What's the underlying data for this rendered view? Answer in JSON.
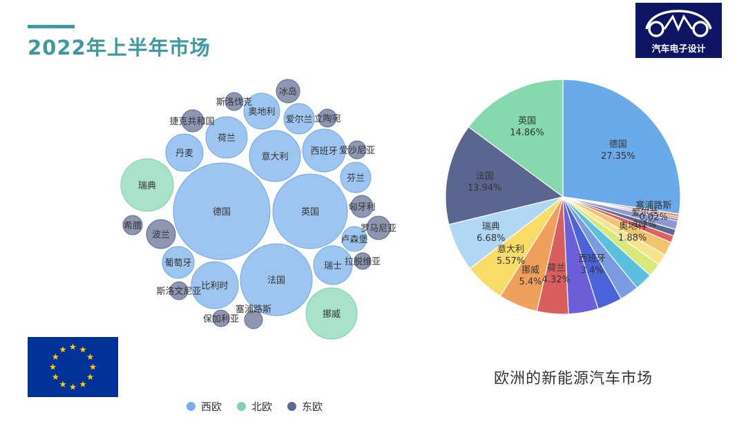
{
  "page_title": "2022年上半年市场",
  "logo": {
    "text": "汽车电子设计",
    "icon": "car-outline-icon"
  },
  "colors": {
    "accent": "#3a9aa0",
    "logo_bg": "#0d1563",
    "flag_blue": "#003399",
    "flag_star": "#ffcc00",
    "west": "#9ec5f0",
    "north": "#a8e2c8",
    "east": "#8e96b2"
  },
  "legend": [
    {
      "label": "西欧",
      "color": "#78aee8"
    },
    {
      "label": "北欧",
      "color": "#7fd3ae"
    },
    {
      "label": "东欧",
      "color": "#5c6a92"
    }
  ],
  "pie_caption": "欧洲的新能源汽车市场",
  "chart_data": [
    {
      "type": "bubble",
      "group_key": [
        "西欧",
        "北欧",
        "东欧"
      ],
      "bubbles": [
        {
          "label": "德国",
          "group": "西欧",
          "rank": 1
        },
        {
          "label": "英国",
          "group": "西欧",
          "rank": 2
        },
        {
          "label": "法国",
          "group": "西欧",
          "rank": 3
        },
        {
          "label": "比利时",
          "group": "西欧",
          "rank": 4
        },
        {
          "label": "意大利",
          "group": "西欧",
          "rank": 5
        },
        {
          "label": "西班牙",
          "group": "西欧",
          "rank": 6
        },
        {
          "label": "瑞典",
          "group": "北欧",
          "rank": 7
        },
        {
          "label": "挪威",
          "group": "北欧",
          "rank": 8
        },
        {
          "label": "荷兰",
          "group": "西欧",
          "rank": 9
        },
        {
          "label": "瑞士",
          "group": "西欧",
          "rank": 10
        },
        {
          "label": "丹麦",
          "group": "西欧",
          "rank": 11
        },
        {
          "label": "奥地利",
          "group": "西欧",
          "rank": 12
        },
        {
          "label": "爱尔兰",
          "group": "西欧",
          "rank": 13
        },
        {
          "label": "芬兰",
          "group": "西欧",
          "rank": 14
        },
        {
          "label": "葡萄牙",
          "group": "西欧",
          "rank": 15
        },
        {
          "label": "卢森堡",
          "group": "西欧",
          "rank": 16
        },
        {
          "label": "波兰",
          "group": "东欧",
          "rank": 17
        },
        {
          "label": "冰岛",
          "group": "东欧",
          "rank": 18
        },
        {
          "label": "匈牙利",
          "group": "东欧",
          "rank": 19
        },
        {
          "label": "罗马尼亚",
          "group": "东欧",
          "rank": 20
        },
        {
          "label": "捷克共和国",
          "group": "东欧",
          "rank": 21
        },
        {
          "label": "希腊",
          "group": "东欧",
          "rank": 22
        },
        {
          "label": "斯洛伐克",
          "group": "东欧",
          "rank": 23
        },
        {
          "label": "立陶宛",
          "group": "东欧",
          "rank": 24
        },
        {
          "label": "爱沙尼亚",
          "group": "东欧",
          "rank": 25
        },
        {
          "label": "斯洛文尼亚",
          "group": "东欧",
          "rank": 26
        },
        {
          "label": "拉脱维亚",
          "group": "东欧",
          "rank": 27
        },
        {
          "label": "塞浦路斯",
          "group": "东欧",
          "rank": 28
        },
        {
          "label": "保加利亚",
          "group": "东欧",
          "rank": 29
        }
      ]
    },
    {
      "type": "pie",
      "slices": [
        {
          "label": "德国",
          "value": 27.35,
          "display": "27.35%",
          "color": "#6aaae8",
          "labeled": true
        },
        {
          "label": "塞浦路斯",
          "value": 0.02,
          "display": "0.02%",
          "color": "#e8b4b4",
          "labeled": true
        },
        {
          "label": "",
          "value": 0.35,
          "display": "",
          "color": "#e67d7d",
          "labeled": false
        },
        {
          "label": "",
          "value": 0.3,
          "display": "",
          "color": "#d99a5a",
          "labeled": false
        },
        {
          "label": "",
          "value": 0.3,
          "display": "",
          "color": "#7b6fcf",
          "labeled": false
        },
        {
          "label": "爱尔兰",
          "value": 1.2,
          "display": "1.2%",
          "color": "#9098d0",
          "labeled": true
        },
        {
          "label": "",
          "value": 0.9,
          "display": "",
          "color": "#5c6a92",
          "labeled": false
        },
        {
          "label": "",
          "value": 0.95,
          "display": "",
          "color": "#e45f5f",
          "labeled": false
        },
        {
          "label": "奥地利",
          "value": 1.88,
          "display": "1.88%",
          "color": "#f2c46e",
          "labeled": true
        },
        {
          "label": "",
          "value": 1.55,
          "display": "",
          "color": "#f5e38e",
          "labeled": false
        },
        {
          "label": "",
          "value": 1.9,
          "display": "",
          "color": "#d9e87a",
          "labeled": false
        },
        {
          "label": "",
          "value": 2.45,
          "display": "",
          "color": "#5bc0de",
          "labeled": false
        },
        {
          "label": "",
          "value": 2.62,
          "display": "",
          "color": "#7a9be0",
          "labeled": false
        },
        {
          "label": "西班牙",
          "value": 3.4,
          "display": "3.4%",
          "color": "#4a63d8",
          "labeled": true
        },
        {
          "label": "",
          "value": 4.1,
          "display": "",
          "color": "#6c5fd8",
          "labeled": false
        },
        {
          "label": "荷兰",
          "value": 4.32,
          "display": "4.32%",
          "color": "#d95f5f",
          "labeled": true
        },
        {
          "label": "挪威",
          "value": 5.4,
          "display": "5.4%",
          "color": "#f0a05a",
          "labeled": true
        },
        {
          "label": "意大利",
          "value": 5.57,
          "display": "5.57%",
          "color": "#f8dc68",
          "labeled": true
        },
        {
          "label": "瑞典",
          "value": 6.68,
          "display": "6.68%",
          "color": "#b0d8f5",
          "labeled": true
        },
        {
          "label": "法国",
          "value": 13.94,
          "display": "13.94%",
          "color": "#5a6690",
          "labeled": true
        },
        {
          "label": "英国",
          "value": 14.86,
          "display": "14.86%",
          "color": "#86d9ae",
          "labeled": true
        }
      ]
    }
  ]
}
